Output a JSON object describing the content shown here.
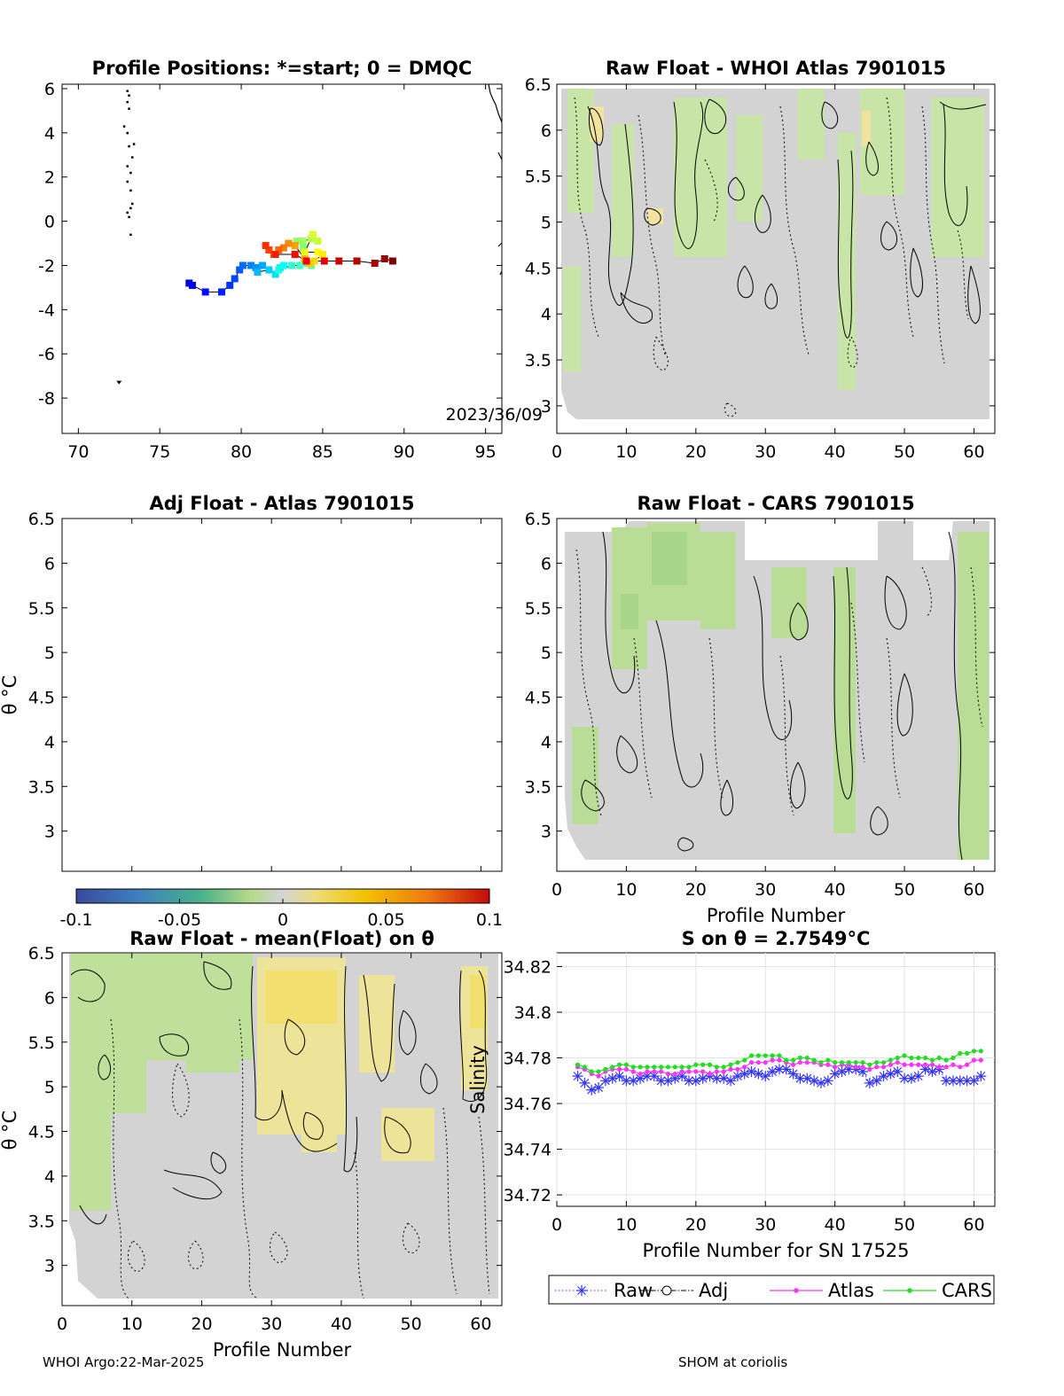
{
  "footer": {
    "left": "WHOI Argo:22-Mar-2025",
    "right": "SHOM at coriolis"
  },
  "chart_data": [
    {
      "id": "positions",
      "type": "scatter",
      "title": "Profile Positions: *=start; 0 = DMQC",
      "xlim": [
        69,
        96
      ],
      "ylim": [
        -9.6,
        6.2
      ],
      "xticks": [
        "70",
        "75",
        "80",
        "85",
        "90",
        "95"
      ],
      "yticks": [
        "6",
        "4",
        "2",
        "0",
        "-2",
        "-4",
        "-6",
        "-8"
      ],
      "annotation": "2023/36/09",
      "track": [
        [
          76.8,
          -2.8
        ],
        [
          77.0,
          -2.9
        ],
        [
          77.8,
          -3.2
        ],
        [
          78.8,
          -3.2
        ],
        [
          79.3,
          -2.9
        ],
        [
          79.6,
          -2.6
        ],
        [
          79.9,
          -2.2
        ],
        [
          80.1,
          -2.0
        ],
        [
          80.6,
          -2.0
        ],
        [
          80.9,
          -2.1
        ],
        [
          81.3,
          -2.0
        ],
        [
          81.0,
          -2.3
        ],
        [
          81.7,
          -2.2
        ],
        [
          82.1,
          -2.4
        ],
        [
          82.4,
          -2.1
        ],
        [
          82.6,
          -2.0
        ],
        [
          82.3,
          -2.2
        ],
        [
          83.1,
          -2.0
        ],
        [
          83.6,
          -2.0
        ],
        [
          83.9,
          -1.9
        ],
        [
          84.3,
          -2.0
        ],
        [
          83.8,
          -1.2
        ],
        [
          83.4,
          -0.9
        ],
        [
          83.8,
          -0.9
        ],
        [
          84.3,
          -0.8
        ],
        [
          84.7,
          -0.9
        ],
        [
          84.4,
          -0.6
        ],
        [
          83.9,
          -1.4
        ],
        [
          84.7,
          -1.4
        ],
        [
          85.0,
          -1.5
        ],
        [
          84.5,
          -1.8
        ],
        [
          84.2,
          -1.9
        ],
        [
          83.9,
          -1.7
        ],
        [
          83.3,
          -1.1
        ],
        [
          82.9,
          -1.0
        ],
        [
          82.6,
          -1.2
        ],
        [
          82.3,
          -1.3
        ],
        [
          82.0,
          -1.5
        ],
        [
          81.7,
          -1.3
        ],
        [
          81.5,
          -1.1
        ],
        [
          82.1,
          -1.5
        ],
        [
          83.3,
          -1.5
        ],
        [
          84.0,
          -1.8
        ],
        [
          85.1,
          -1.8
        ],
        [
          86.0,
          -1.8
        ],
        [
          87.1,
          -1.8
        ],
        [
          88.2,
          -1.9
        ],
        [
          88.8,
          -1.7
        ],
        [
          89.3,
          -1.8
        ]
      ],
      "cluster": [
        [
          73.0,
          5.9
        ],
        [
          73.1,
          5.7
        ],
        [
          73.0,
          5.4
        ],
        [
          73.1,
          5.1
        ],
        [
          72.8,
          4.3
        ],
        [
          73.0,
          4.0
        ],
        [
          73.4,
          3.5
        ],
        [
          73.1,
          3.4
        ],
        [
          73.3,
          2.9
        ],
        [
          73.0,
          2.5
        ],
        [
          73.2,
          2.2
        ],
        [
          73.0,
          1.8
        ],
        [
          73.2,
          1.4
        ],
        [
          73.3,
          0.8
        ],
        [
          73.2,
          0.6
        ],
        [
          73.0,
          0.4
        ],
        [
          73.1,
          0.2
        ],
        [
          73.2,
          -0.6
        ]
      ],
      "lone_point": [
        72.5,
        -7.3
      ]
    },
    {
      "id": "raw-whoi",
      "type": "heatmap",
      "title": "Raw Float - WHOI Atlas  7901015",
      "xlim": [
        0,
        63
      ],
      "ylim": [
        2.7,
        6.5
      ],
      "xticks": [
        "0",
        "10",
        "20",
        "30",
        "40",
        "50",
        "60"
      ],
      "yticks": [
        "6.5",
        "6",
        "5.5",
        "5",
        "4.5",
        "4",
        "3.5",
        "3"
      ]
    },
    {
      "id": "adj-atlas",
      "type": "heatmap",
      "title": "Adj Float - Atlas  7901015",
      "ylabel": "θ °C",
      "xlim": [
        0,
        63
      ],
      "ylim": [
        2.55,
        6.5
      ],
      "yticks": [
        "6.5",
        "6",
        "5.5",
        "5",
        "4.5",
        "4",
        "3.5",
        "3"
      ]
    },
    {
      "id": "raw-cars",
      "type": "heatmap",
      "title": "Raw Float - CARS  7901015",
      "xlabel": "Profile Number",
      "xlim": [
        0,
        63
      ],
      "ylim": [
        2.55,
        6.5
      ],
      "xticks": [
        "0",
        "10",
        "20",
        "30",
        "40",
        "50",
        "60"
      ],
      "yticks": [
        "6.5",
        "6",
        "5.5",
        "5",
        "4.5",
        "4",
        "3.5",
        "3"
      ]
    },
    {
      "id": "colorbar",
      "type": "heatmap",
      "range": [
        -0.1,
        0.1
      ],
      "ticks": [
        "-0.1",
        "-0.05",
        "0",
        "0.05",
        "0.1"
      ]
    },
    {
      "id": "raw-mean",
      "type": "heatmap",
      "title": "Raw Float - mean(Float) on θ",
      "xlabel": "Profile Number",
      "ylabel": "θ °C",
      "xlim": [
        0,
        63
      ],
      "ylim": [
        2.55,
        6.5
      ],
      "xticks": [
        "0",
        "10",
        "20",
        "30",
        "40",
        "50",
        "60"
      ],
      "yticks": [
        "6.5",
        "6",
        "5.5",
        "5",
        "4.5",
        "4",
        "3.5",
        "3"
      ],
      "overlay_label": "Salinity"
    },
    {
      "id": "salinity-line",
      "type": "line",
      "title": "S on θ = 2.7549°C",
      "xlabel": "Profile Number for SN 17525",
      "xlim": [
        0,
        63
      ],
      "ylim": [
        34.715,
        34.826
      ],
      "xticks": [
        "0",
        "10",
        "20",
        "30",
        "40",
        "50",
        "60"
      ],
      "yticks": [
        "34.82",
        "34.8",
        "34.78",
        "34.76",
        "34.74",
        "34.72"
      ],
      "grid": true,
      "legend": [
        "Raw",
        "Adj",
        "Atlas",
        "CARS"
      ],
      "x": [
        3,
        4,
        5,
        6,
        7,
        8,
        9,
        10,
        11,
        12,
        13,
        14,
        15,
        16,
        17,
        18,
        19,
        20,
        21,
        22,
        23,
        24,
        25,
        26,
        27,
        28,
        29,
        30,
        31,
        32,
        33,
        34,
        35,
        36,
        37,
        38,
        39,
        40,
        41,
        42,
        43,
        44,
        45,
        46,
        47,
        48,
        49,
        50,
        51,
        52,
        53,
        54,
        55,
        56,
        57,
        58,
        59,
        60,
        61
      ],
      "series": [
        {
          "name": "Raw",
          "color": "#3333ff",
          "values": [
            34.772,
            34.769,
            34.766,
            34.767,
            34.77,
            34.771,
            34.772,
            34.77,
            34.77,
            34.771,
            34.772,
            34.772,
            34.77,
            34.77,
            34.771,
            34.772,
            34.77,
            34.77,
            34.771,
            34.772,
            34.771,
            34.771,
            34.77,
            34.772,
            34.773,
            34.774,
            34.773,
            34.772,
            34.774,
            34.775,
            34.775,
            34.773,
            34.771,
            34.771,
            34.77,
            34.769,
            34.77,
            34.773,
            34.774,
            34.775,
            34.775,
            34.774,
            34.769,
            34.77,
            34.772,
            34.773,
            34.774,
            34.771,
            34.771,
            34.772,
            34.775,
            34.774,
            34.775,
            34.77,
            34.77,
            34.77,
            34.77,
            34.77,
            34.772
          ]
        },
        {
          "name": "Atlas",
          "color": "#ff33ff",
          "values": [
            34.776,
            34.775,
            34.773,
            34.772,
            34.774,
            34.775,
            34.775,
            34.775,
            34.774,
            34.773,
            34.774,
            34.774,
            34.774,
            34.773,
            34.773,
            34.774,
            34.774,
            34.774,
            34.774,
            34.773,
            34.774,
            34.774,
            34.775,
            34.775,
            34.776,
            34.778,
            34.778,
            34.778,
            34.779,
            34.779,
            34.778,
            34.777,
            34.778,
            34.778,
            34.778,
            34.777,
            34.777,
            34.776,
            34.777,
            34.777,
            34.776,
            34.776,
            34.775,
            34.776,
            34.776,
            34.777,
            34.778,
            34.777,
            34.777,
            34.777,
            34.777,
            34.777,
            34.776,
            34.776,
            34.777,
            34.776,
            34.777,
            34.779,
            34.779
          ]
        },
        {
          "name": "CARS",
          "color": "#22dd22",
          "values": [
            34.777,
            34.776,
            34.774,
            34.774,
            34.775,
            34.776,
            34.777,
            34.777,
            34.776,
            34.776,
            34.776,
            34.776,
            34.776,
            34.776,
            34.776,
            34.776,
            34.776,
            34.777,
            34.777,
            34.777,
            34.776,
            34.776,
            34.777,
            34.778,
            34.779,
            34.781,
            34.781,
            34.781,
            34.781,
            34.781,
            34.779,
            34.779,
            34.78,
            34.78,
            34.779,
            34.778,
            34.779,
            34.778,
            34.778,
            34.778,
            34.778,
            34.778,
            34.777,
            34.778,
            34.778,
            34.779,
            34.78,
            34.781,
            34.78,
            34.78,
            34.78,
            34.779,
            34.78,
            34.779,
            34.78,
            34.782,
            34.782,
            34.783,
            34.783
          ]
        }
      ]
    }
  ]
}
